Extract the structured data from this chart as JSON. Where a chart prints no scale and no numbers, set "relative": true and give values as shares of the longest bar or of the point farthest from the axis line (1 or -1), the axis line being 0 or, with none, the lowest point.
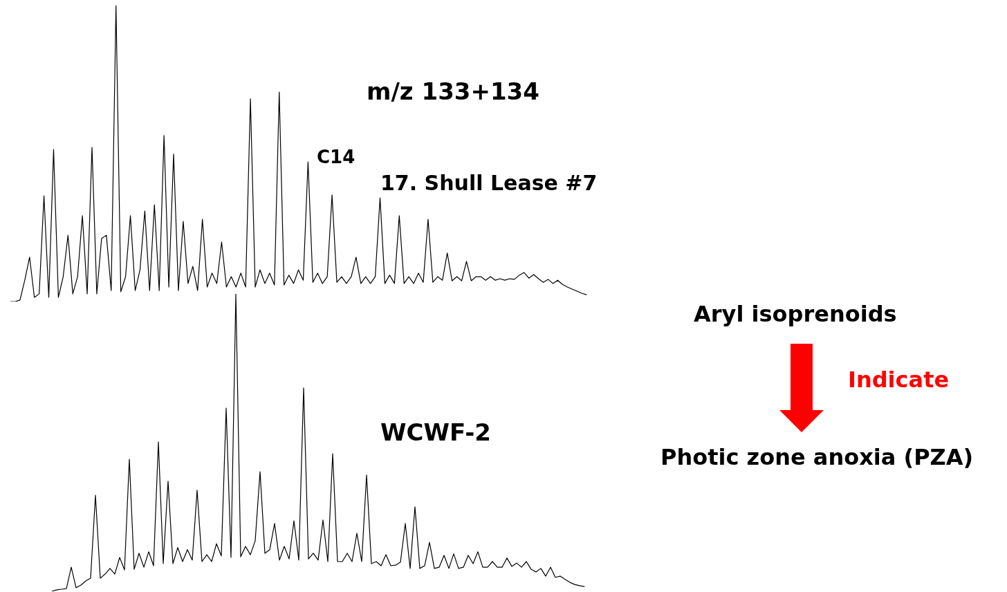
{
  "chart_data": [
    {
      "type": "line",
      "title": "m/z 133+134",
      "subtitle": "17. Shull Lease #7",
      "relative": true,
      "marker": "none",
      "legend": false,
      "annotations": [
        "C14"
      ],
      "categories": [
        null,
        null,
        null,
        null,
        null,
        null,
        null,
        null,
        null,
        null,
        null,
        null,
        null,
        null,
        null,
        null,
        null,
        null,
        null,
        null,
        null,
        null,
        null,
        null,
        null,
        null,
        null,
        null,
        null,
        null,
        null,
        null,
        null,
        null,
        null,
        null,
        null,
        null,
        null,
        null,
        null,
        null,
        null,
        null,
        null,
        null,
        null,
        null,
        null,
        null,
        null,
        null,
        null,
        null,
        null,
        null,
        null,
        null,
        null,
        null,
        null,
        null,
        null,
        null,
        null,
        null,
        null,
        null,
        null,
        null,
        null,
        null,
        null,
        null,
        null,
        null,
        null,
        null,
        null,
        null,
        null,
        null,
        null,
        null,
        null,
        null,
        null,
        null,
        null,
        null,
        null,
        null,
        null,
        null,
        null,
        null,
        null,
        null,
        null,
        null,
        null,
        null,
        null,
        null,
        null,
        null,
        null,
        null,
        null,
        null,
        null,
        null,
        null,
        null,
        null,
        null,
        null,
        null,
        null,
        null,
        null
      ],
      "series": [
        {
          "color": "#000000",
          "values": [
            0,
            0,
            0.005,
            0.072,
            0.15,
            0.014,
            0.026,
            0.357,
            0.014,
            0.514,
            0.014,
            0.084,
            0.224,
            0.026,
            0.084,
            0.29,
            0.026,
            0.521,
            0.026,
            0.213,
            0.224,
            0.037,
            1,
            0.033,
            0.084,
            0.29,
            0.037,
            0.107,
            0.306,
            0.037,
            0.327,
            0.037,
            0.561,
            0.049,
            0.498,
            0.037,
            0.271,
            0.061,
            0.119,
            0.037,
            0.278,
            0.049,
            0.096,
            0.061,
            0.201,
            0.049,
            0.084,
            0.049,
            0.096,
            0.049,
            0.685,
            0.049,
            0.107,
            0.061,
            0.096,
            0.056,
            0.708,
            0.056,
            0.089,
            0.061,
            0.107,
            0.072,
            0.472,
            0.065,
            0.096,
            0.061,
            0.084,
            0.36,
            0.065,
            0.084,
            0.061,
            0.084,
            0.15,
            0.061,
            0.084,
            0.061,
            0.084,
            0.35,
            0.061,
            0.089,
            0.061,
            0.29,
            0.061,
            0.084,
            0.061,
            0.096,
            0.065,
            0.278,
            0.065,
            0.084,
            0.072,
            0.164,
            0.07,
            0.084,
            0.07,
            0.136,
            0.07,
            0.084,
            0.084,
            0.072,
            0.084,
            0.072,
            0.077,
            0.072,
            0.077,
            0.075,
            0.089,
            0.098,
            0.079,
            0.091,
            0.077,
            0.065,
            0.075,
            0.061,
            0.072,
            0.058,
            0.049,
            0.042,
            0.035,
            0.028,
            0.023
          ]
        }
      ]
    },
    {
      "type": "line",
      "title": "WCWF-2",
      "relative": true,
      "marker": "none",
      "legend": false,
      "categories": [
        null,
        null,
        null,
        null,
        null,
        null,
        null,
        null,
        null,
        null,
        null,
        null,
        null,
        null,
        null,
        null,
        null,
        null,
        null,
        null,
        null,
        null,
        null,
        null,
        null,
        null,
        null,
        null,
        null,
        null,
        null,
        null,
        null,
        null,
        null,
        null,
        null,
        null,
        null,
        null,
        null,
        null,
        null,
        null,
        null,
        null,
        null,
        null,
        null,
        null,
        null,
        null,
        null,
        null,
        null,
        null,
        null,
        null,
        null,
        null,
        null,
        null,
        null,
        null,
        null,
        null,
        null,
        null,
        null,
        null,
        null,
        null,
        null,
        null,
        null,
        null,
        null,
        null,
        null,
        null,
        null,
        null,
        null,
        null,
        null,
        null,
        null,
        null,
        null,
        null,
        null,
        null,
        null,
        null,
        null,
        null,
        null,
        null,
        null,
        null,
        null,
        null,
        null,
        null,
        null,
        null,
        null,
        null,
        null,
        null,
        null
      ],
      "series": [
        {
          "color": "#000000",
          "values": [
            0,
            0.005,
            0.007,
            0.009,
            0.081,
            0.012,
            0.021,
            0.035,
            0.044,
            0.323,
            0.044,
            0.058,
            0.077,
            0.058,
            0.114,
            0.072,
            0.444,
            0.074,
            0.128,
            0.081,
            0.133,
            0.086,
            0.502,
            0.093,
            0.37,
            0.093,
            0.147,
            0.1,
            0.14,
            0.105,
            0.34,
            0.1,
            0.123,
            0.1,
            0.16,
            0.119,
            0.616,
            0.114,
            1,
            0.116,
            0.151,
            0.123,
            0.17,
            0.402,
            0.128,
            0.14,
            0.228,
            0.105,
            0.151,
            0.109,
            0.237,
            0.105,
            0.684,
            0.109,
            0.128,
            0.105,
            0.24,
            0.1,
            0.463,
            0.1,
            0.1,
            0.128,
            0.1,
            0.195,
            0.1,
            0.391,
            0.093,
            0.1,
            0.086,
            0.123,
            0.086,
            0.088,
            0.098,
            0.228,
            0.077,
            0.284,
            0.077,
            0.086,
            0.165,
            0.077,
            0.081,
            0.121,
            0.077,
            0.126,
            0.077,
            0.081,
            0.121,
            0.093,
            0.133,
            0.081,
            0.081,
            0.1,
            0.081,
            0.081,
            0.112,
            0.084,
            0.095,
            0.081,
            0.1,
            0.074,
            0.065,
            0.077,
            0.051,
            0.081,
            0.047,
            0.051,
            0.04,
            0.03,
            0.023,
            0.019,
            0.016
          ]
        }
      ]
    },
    {
      "type": "other",
      "annotations": [
        "Aryl isoprenoids",
        "Indicate",
        "Photic zone anoxia (PZA)"
      ]
    }
  ]
}
